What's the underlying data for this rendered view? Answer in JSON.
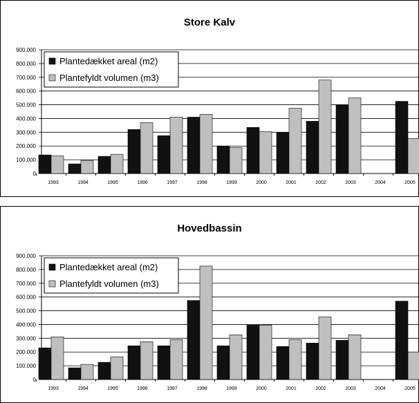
{
  "chart_data": [
    {
      "type": "bar",
      "title": "Store Kalv",
      "categories": [
        "1993",
        "1994",
        "1995",
        "1996",
        "1997",
        "1998",
        "1999",
        "2000",
        "2001",
        "2002",
        "2003",
        "2004",
        "2005"
      ],
      "series": [
        {
          "name": "Plantedækket areal (m2)",
          "color": "#111111",
          "values": [
            135000,
            70000,
            125000,
            320000,
            275000,
            410000,
            200000,
            335000,
            300000,
            380000,
            500000,
            null,
            525000
          ]
        },
        {
          "name": "Plantefyldt volumen (m3)",
          "color": "#bfbfbf",
          "values": [
            128000,
            95000,
            140000,
            370000,
            410000,
            430000,
            190000,
            305000,
            475000,
            680000,
            550000,
            null,
            255000
          ]
        }
      ],
      "ylim": [
        0,
        900000
      ],
      "yticks": [
        "0",
        "100.000",
        "200.000",
        "300.000",
        "400.000",
        "500.000",
        "600.000",
        "700.000",
        "800.000",
        "900.000"
      ],
      "grid": true,
      "legend": "top-left"
    },
    {
      "type": "bar",
      "title": "Hovedbassin",
      "categories": [
        "1993",
        "1994",
        "1995",
        "1996",
        "1997",
        "1998",
        "1999",
        "2000",
        "2001",
        "2002",
        "2003",
        "2004",
        "2005"
      ],
      "series": [
        {
          "name": "Plantedækket areal (m2)",
          "color": "#111111",
          "values": [
            230000,
            85000,
            125000,
            245000,
            245000,
            575000,
            245000,
            395000,
            240000,
            265000,
            285000,
            null,
            570000
          ]
        },
        {
          "name": "Plantefyldt volumen (m3)",
          "color": "#bfbfbf",
          "values": [
            310000,
            110000,
            165000,
            275000,
            290000,
            825000,
            325000,
            395000,
            290000,
            455000,
            325000,
            null,
            200000
          ]
        }
      ],
      "ylim": [
        0,
        900000
      ],
      "yticks": [
        "0",
        "100.000",
        "200.000",
        "300.000",
        "400.000",
        "500.000",
        "600.000",
        "700.000",
        "800.000",
        "900.000"
      ],
      "grid": true,
      "legend": "top-left"
    }
  ]
}
